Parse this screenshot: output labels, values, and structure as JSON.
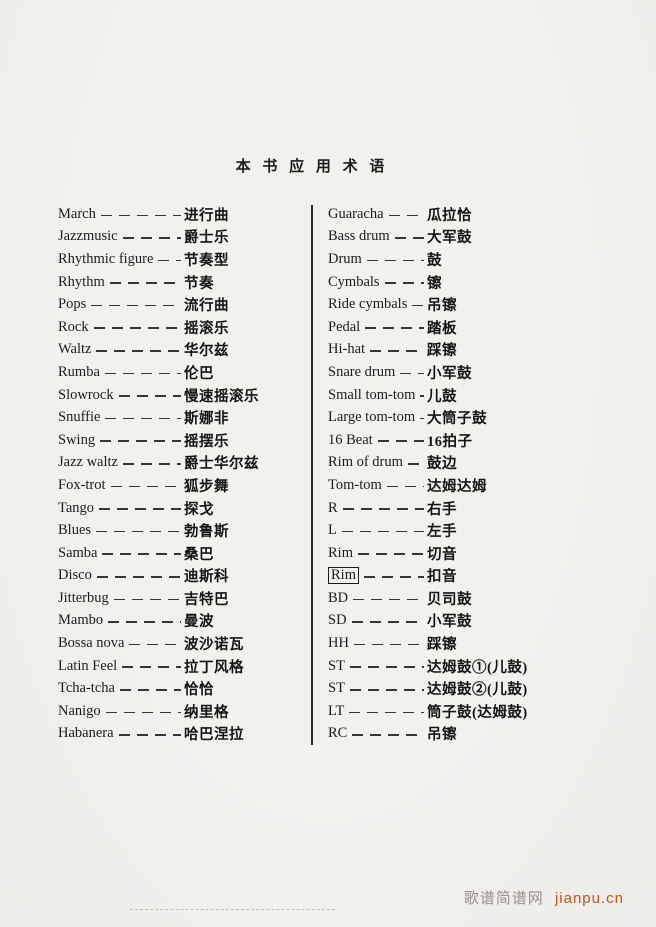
{
  "page": {
    "title": "本 书 应 用 术 语"
  },
  "glossary": {
    "left": [
      {
        "en": "March",
        "zh": "进行曲"
      },
      {
        "en": "Jazzmusic",
        "zh": "爵士乐"
      },
      {
        "en": "Rhythmic figure",
        "zh": "节奏型"
      },
      {
        "en": "Rhythm",
        "zh": "节奏"
      },
      {
        "en": "Pops",
        "zh": "流行曲"
      },
      {
        "en": "Rock",
        "zh": "摇滚乐"
      },
      {
        "en": "Waltz",
        "zh": "华尔兹"
      },
      {
        "en": "Rumba",
        "zh": "伦巴"
      },
      {
        "en": "Slowrock",
        "zh": "慢速摇滚乐"
      },
      {
        "en": "Snuffie",
        "zh": "斯娜非"
      },
      {
        "en": "Swing",
        "zh": "摇摆乐"
      },
      {
        "en": "Jazz waltz",
        "zh": "爵士华尔兹"
      },
      {
        "en": "Fox-trot",
        "zh": "狐步舞"
      },
      {
        "en": "Tango",
        "zh": "探戈"
      },
      {
        "en": "Blues",
        "zh": "勃鲁斯"
      },
      {
        "en": "Samba",
        "zh": "桑巴"
      },
      {
        "en": "Disco",
        "zh": "迪斯科"
      },
      {
        "en": "Jitterbug",
        "zh": "吉特巴"
      },
      {
        "en": "Mambo",
        "zh": "曼波"
      },
      {
        "en": "Bossa nova",
        "zh": "波沙诺瓦"
      },
      {
        "en": "Latin Feel",
        "zh": "拉丁风格"
      },
      {
        "en": "Tcha-tcha",
        "zh": "恰恰"
      },
      {
        "en": "Nanigo",
        "zh": "纳里格"
      },
      {
        "en": "Habanera",
        "zh": "哈巴涅拉"
      }
    ],
    "right": [
      {
        "en": "Guaracha",
        "zh": "瓜拉恰"
      },
      {
        "en": "Bass drum",
        "zh": "大军鼓"
      },
      {
        "en": "Drum",
        "zh": "鼓"
      },
      {
        "en": "Cymbals",
        "zh": "镲"
      },
      {
        "en": "Ride cymbals",
        "zh": "吊镲"
      },
      {
        "en": "Pedal",
        "zh": "踏板"
      },
      {
        "en": "Hi-hat",
        "zh": "踩镲"
      },
      {
        "en": "Snare drum",
        "zh": "小军鼓"
      },
      {
        "en": "Small tom-tom",
        "zh": "儿鼓"
      },
      {
        "en": "Large tom-tom",
        "zh": "大筒子鼓"
      },
      {
        "en": "16 Beat",
        "zh": "16拍子"
      },
      {
        "en": "Rim of drum",
        "zh": "鼓边"
      },
      {
        "en": "Tom-tom",
        "zh": "达姆达姆"
      },
      {
        "en": "R",
        "zh": "右手"
      },
      {
        "en": "L",
        "zh": "左手"
      },
      {
        "en": "Rim",
        "zh": "切音"
      },
      {
        "en": "Rim",
        "zh": "扣音",
        "boxed": true
      },
      {
        "en": "BD",
        "zh": "贝司鼓"
      },
      {
        "en": "SD",
        "zh": "小军鼓"
      },
      {
        "en": "HH",
        "zh": "踩镲"
      },
      {
        "en": "ST",
        "zh": "达姆鼓①(儿鼓)"
      },
      {
        "en": "ST",
        "zh": "达姆鼓②(儿鼓)"
      },
      {
        "en": "LT",
        "zh": "筒子鼓(达姆鼓)"
      },
      {
        "en": "RC",
        "zh": "吊镲"
      }
    ]
  },
  "watermark": {
    "site_name": "歌谱简谱网",
    "site_url": "jianpu.cn"
  },
  "colors": {
    "ink": "#1c1c1c",
    "paper": "#f2f1ee",
    "divider": "#2a2a2a",
    "watermark_gray": "#99908a",
    "watermark_orange": "#c4521f"
  }
}
